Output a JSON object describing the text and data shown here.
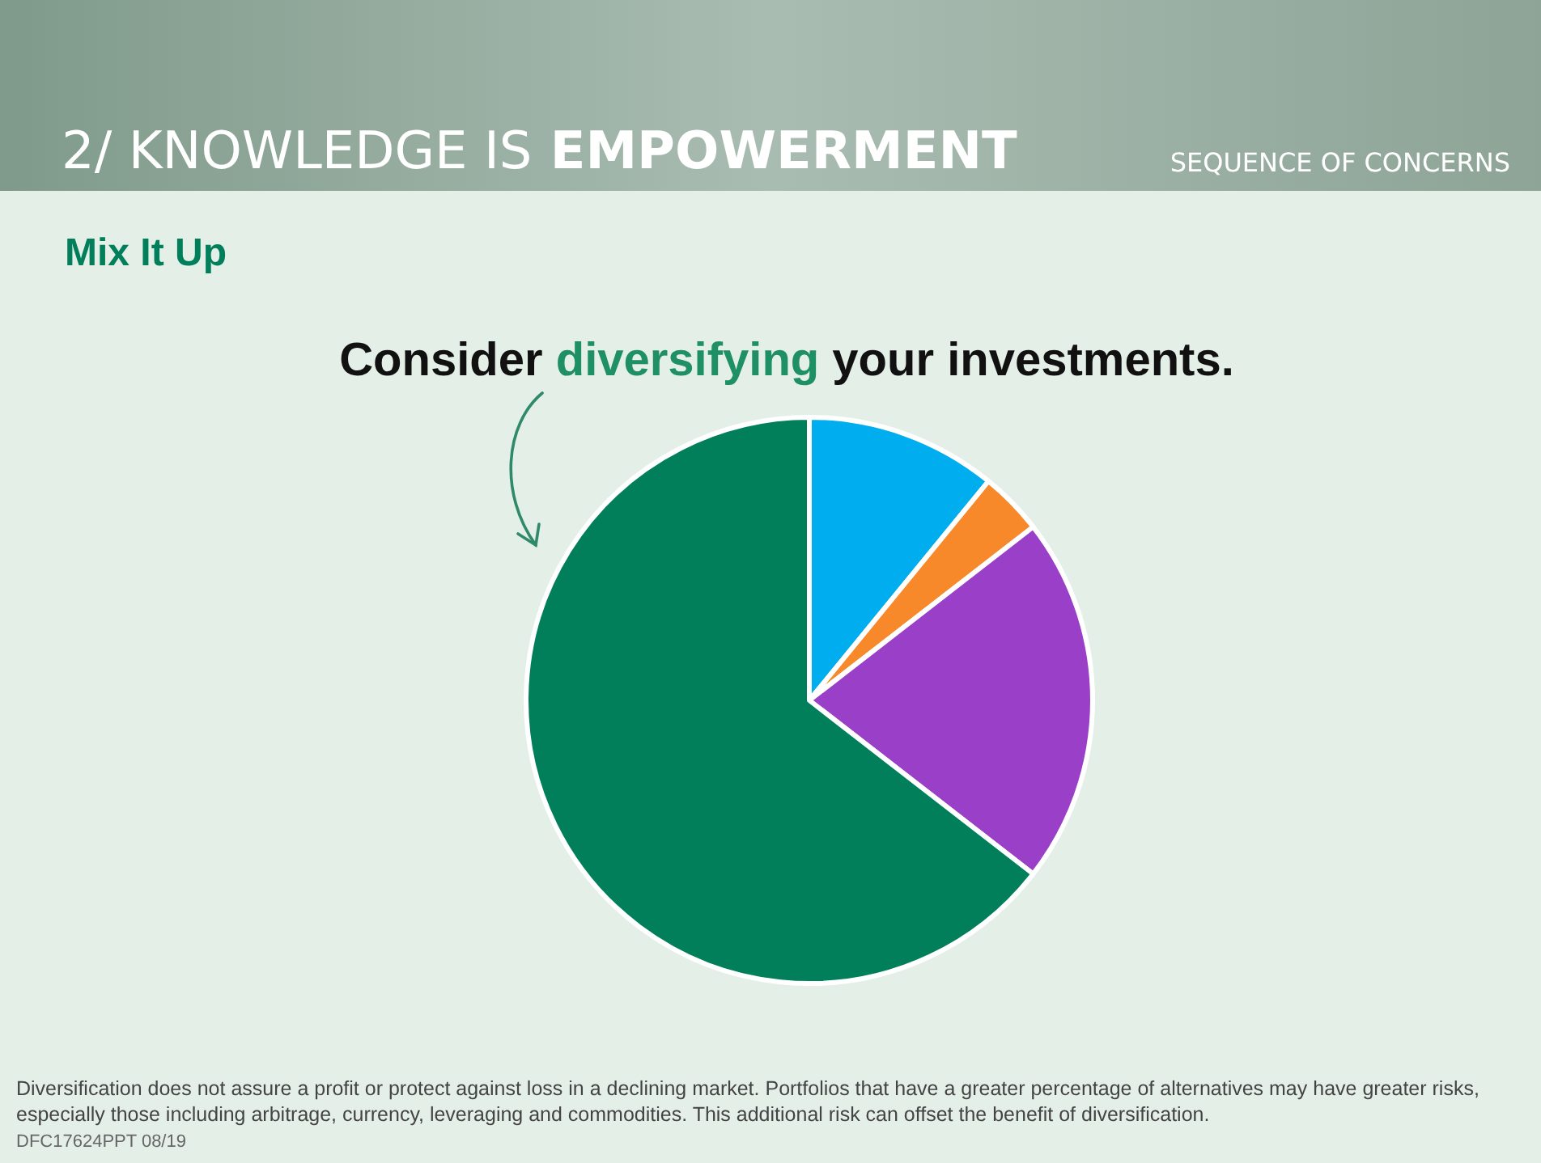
{
  "chart_data": {
    "type": "pie",
    "title": "2/ KNOWLEDGE IS EMPOWERMENT",
    "subtitle": "Mix It Up",
    "categories": [
      null,
      null,
      null,
      null
    ],
    "values": [
      10.9,
      3.6,
      21,
      64.5
    ],
    "colors": [
      "#00aeef",
      "#f7892b",
      "#9a3fc8",
      "#007f5a"
    ],
    "legend": false,
    "annotations": [
      "SEQUENCE OF CONCERNS",
      "Consider diversifying your investments.",
      "Diversification does not assure a profit or protect against loss in a declining market. Portfolios that have a greater percentage of alternatives may have greater risks, especially those including arbitrage, currency, leveraging and commodities. This additional risk can offset the benefit of diversification.",
      "DFC17624PPT 08/19"
    ]
  }
}
